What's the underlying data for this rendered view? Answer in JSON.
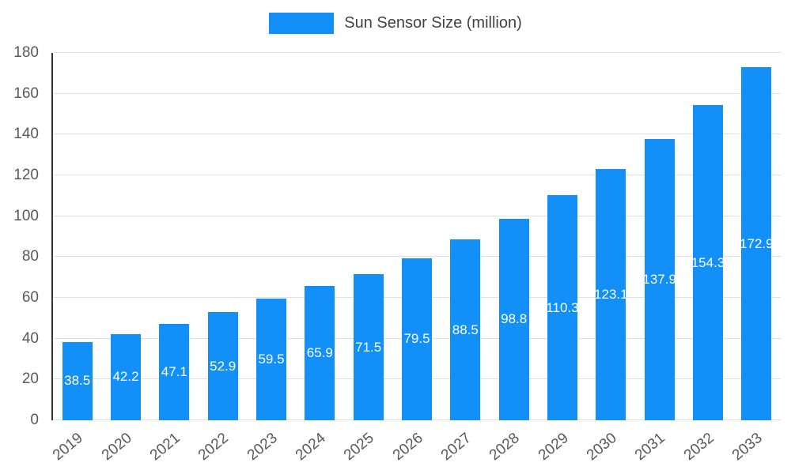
{
  "colors": {
    "bar": "#1290f7",
    "grid": "#e0e0e0",
    "axis_line": "#333333",
    "tick_label": "#58595b",
    "legend_text": "#434343",
    "value_label": "#ffffff",
    "background": "#ffffff"
  },
  "chart_data": {
    "type": "bar",
    "title": "Sun Sensor Size (million)",
    "categories": [
      "2019",
      "2020",
      "2021",
      "2022",
      "2023",
      "2024",
      "2025",
      "2026",
      "2027",
      "2028",
      "2029",
      "2030",
      "2031",
      "2032",
      "2033"
    ],
    "values": [
      38.5,
      42.2,
      47.1,
      52.9,
      59.5,
      65.9,
      71.5,
      79.5,
      88.5,
      98.8,
      110.3,
      123.1,
      137.9,
      154.3,
      172.9
    ],
    "xlabel": "",
    "ylabel": "",
    "ylim": [
      0,
      180
    ],
    "ytick_step": 20,
    "grid": true,
    "legend_position": "top",
    "value_labels_shown": true,
    "x_label_rotation_deg": -40
  }
}
